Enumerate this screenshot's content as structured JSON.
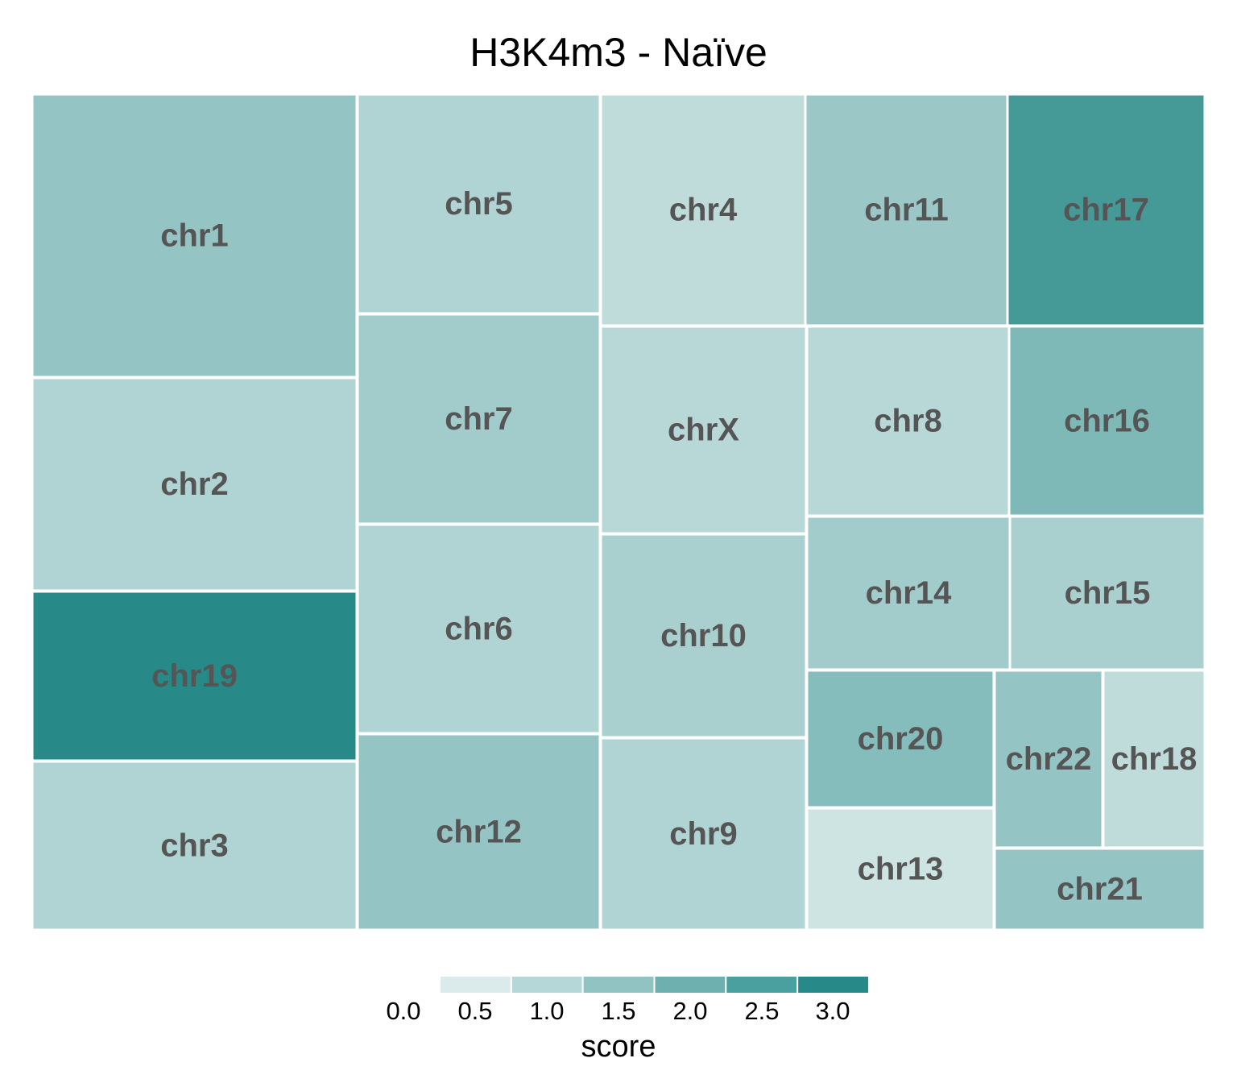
{
  "chart_data": {
    "type": "treemap",
    "title": "H3K4m3 - Naïve",
    "legend": {
      "title": "score",
      "position": "bottom",
      "ticks": [
        "0.0",
        "0.5",
        "1.0",
        "1.5",
        "2.0",
        "2.5",
        "3.0"
      ],
      "colors": [
        "#dbeaea",
        "#b6d7d7",
        "#92c3c3",
        "#6db0af",
        "#49a09e",
        "#288a88"
      ]
    },
    "tiles": [
      {
        "label": "chr1",
        "score": 1.5
      },
      {
        "label": "chr2",
        "score": 1.1
      },
      {
        "label": "chr19",
        "score": 3.0
      },
      {
        "label": "chr3",
        "score": 1.1
      },
      {
        "label": "chr5",
        "score": 1.1
      },
      {
        "label": "chr7",
        "score": 1.3
      },
      {
        "label": "chr6",
        "score": 1.1
      },
      {
        "label": "chr12",
        "score": 1.5
      },
      {
        "label": "chr4",
        "score": 0.9
      },
      {
        "label": "chrX",
        "score": 1.0
      },
      {
        "label": "chr10",
        "score": 1.2
      },
      {
        "label": "chr9",
        "score": 1.1
      },
      {
        "label": "chr11",
        "score": 1.4
      },
      {
        "label": "chr8",
        "score": 1.0
      },
      {
        "label": "chr14",
        "score": 1.3
      },
      {
        "label": "chr20",
        "score": 1.7
      },
      {
        "label": "chr13",
        "score": 0.7
      },
      {
        "label": "chr17",
        "score": 2.6
      },
      {
        "label": "chr16",
        "score": 1.8
      },
      {
        "label": "chr15",
        "score": 1.2
      },
      {
        "label": "chr22",
        "score": 1.5
      },
      {
        "label": "chr18",
        "score": 0.9
      },
      {
        "label": "chr21",
        "score": 1.5
      }
    ]
  }
}
